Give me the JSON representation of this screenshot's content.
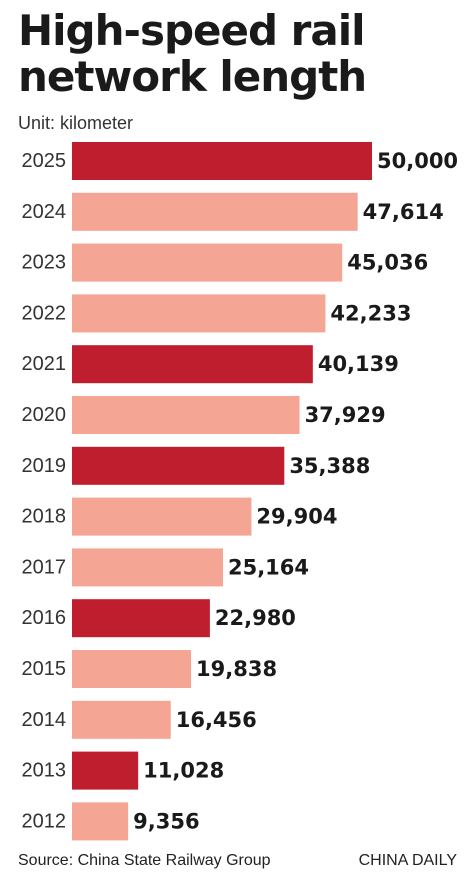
{
  "header": {
    "title_line1": "High-speed rail",
    "title_line2": "network length",
    "unit": "Unit: kilometer"
  },
  "footer": {
    "source": "Source: China State Railway Group",
    "brand": "CHINA DAILY"
  },
  "colors": {
    "highlight": "#be1e2d",
    "normal": "#f5a594",
    "text": "#1a1a1a"
  },
  "chart_data": {
    "type": "bar",
    "orientation": "horizontal",
    "title": "High-speed rail network length",
    "unit": "Unit: kilometer",
    "categories": [
      "2025",
      "2024",
      "2023",
      "2022",
      "2021",
      "2020",
      "2019",
      "2018",
      "2017",
      "2016",
      "2015",
      "2014",
      "2013",
      "2012"
    ],
    "values": [
      50000,
      47614,
      45036,
      42233,
      40139,
      37929,
      35388,
      29904,
      25164,
      22980,
      19838,
      16456,
      11028,
      9356
    ],
    "value_labels": [
      "50,000",
      "47,614",
      "45,036",
      "42,233",
      "40,139",
      "37,929",
      "35,388",
      "29,904",
      "25,164",
      "22,980",
      "19,838",
      "16,456",
      "11,028",
      "9,356"
    ],
    "highlighted": [
      true,
      false,
      false,
      false,
      true,
      false,
      true,
      false,
      false,
      true,
      false,
      false,
      true,
      false
    ],
    "xlim": [
      0,
      50000
    ],
    "grid": false,
    "legend": "none"
  }
}
